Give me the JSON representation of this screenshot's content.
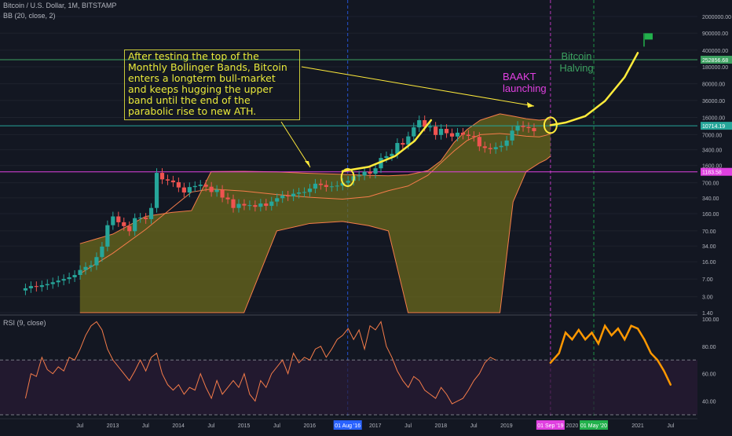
{
  "legend": {
    "symbol": "Bitcoin / U.S. Dollar, 1M, BITSTAMP",
    "bb": "BB (20, close, 2)",
    "rsi": "RSI (9, close)"
  },
  "annotations": {
    "main_text": "After testing the top of the Monthly Bollinger Bands, Bitcoin enters a longterm bull-market and keeps hugging the upper band until the end of the parabolic rise to new ATH.",
    "baakt": "BAAKT launching",
    "halving": "Bitcoin Halving"
  },
  "colors": {
    "background": "#131722",
    "candle_up": "#26a69a",
    "candle_down": "#ef5350",
    "band_fill": "#6b6a1c",
    "band_line": "#f57c4a",
    "highlight_yellow": "#ffeb3b",
    "baakt_color": "#e040e0",
    "halving_color": "#3ca060",
    "rsi_line": "#f57c4a",
    "rsi_projection": "#ff9800",
    "rsi_fill": "#2a1b35",
    "price_line": "#e040e0",
    "target_line": "#3ca060"
  },
  "chart_data": [
    {
      "type": "line",
      "title": "Bitcoin / U.S. Dollar, 1M, BITSTAMP",
      "scale": "log",
      "ylim": [
        1.4,
        3000000
      ],
      "yticks": [
        1.4,
        3.0,
        7.0,
        16.0,
        34.0,
        70.0,
        160.0,
        340.0,
        700.0,
        1600.0,
        3400.0,
        7000.0,
        16000.0,
        36000.0,
        80000.0,
        180000.0,
        400000.0,
        900000.0,
        2000000.0
      ],
      "ytick_labels": [
        "1.40",
        "3.00",
        "7.00",
        "16.00",
        "34.00",
        "70.00",
        "160.00",
        "340.00",
        "700.00",
        "1600.00",
        "3400.00",
        "7000.00",
        "16000.00",
        "36000.00",
        "80000.00",
        "180000.00",
        "400000.00",
        "900000.00",
        "2000000.00"
      ],
      "price_markers": [
        {
          "value": 10714.19,
          "label": "10714.19",
          "color": "#26a69a"
        },
        {
          "value": 1183.58,
          "label": "1183.58",
          "color": "#e040e0"
        },
        {
          "value": 252856.68,
          "label": "252856.68",
          "color": "#3ca060"
        }
      ],
      "x_ticks": [
        {
          "label": "Jul",
          "x": 2012.5
        },
        {
          "label": "2013",
          "x": 2013.0
        },
        {
          "label": "Jul",
          "x": 2013.5
        },
        {
          "label": "2014",
          "x": 2014.0
        },
        {
          "label": "Jul",
          "x": 2014.5
        },
        {
          "label": "2015",
          "x": 2015.0
        },
        {
          "label": "Jul",
          "x": 2015.5
        },
        {
          "label": "2016",
          "x": 2016.0
        },
        {
          "label": "2017",
          "x": 2017.0
        },
        {
          "label": "Jul",
          "x": 2017.5
        },
        {
          "label": "2018",
          "x": 2018.0
        },
        {
          "label": "Jul",
          "x": 2018.5
        },
        {
          "label": "2019",
          "x": 2019.0
        },
        {
          "label": "2020",
          "x": 2020.0
        },
        {
          "label": "2021",
          "x": 2021.0
        },
        {
          "label": "Jul",
          "x": 2021.5
        }
      ],
      "date_markers": [
        {
          "label": "01 Aug '16",
          "x": 2016.58,
          "color": "#2962ff"
        },
        {
          "label": "01 Sep '19",
          "x": 2019.67,
          "color": "#e040e0"
        },
        {
          "label": "01 May '20",
          "x": 2020.33,
          "color": "#22b14c"
        }
      ],
      "candles_x_start": 2011.67,
      "candles_x_step": 0.08333,
      "candles_close": [
        4.5,
        5,
        4.8,
        5.2,
        5.5,
        6,
        6.5,
        7,
        7.6,
        8.5,
        10.8,
        12.5,
        13.5,
        20,
        33,
        92,
        140,
        106,
        88,
        69,
        129,
        132,
        123,
        210,
        1125,
        825,
        780,
        720,
        560,
        440,
        570,
        600,
        640,
        580,
        450,
        500,
        345,
        318,
        210,
        255,
        236,
        240,
        222,
        260,
        232,
        285,
        335,
        380,
        365,
        415,
        440,
        450,
        530,
        670,
        630,
        575,
        590,
        610,
        700,
        770,
        960,
        990,
        1190,
        1080,
        1400,
        2300,
        2500,
        2800,
        4700,
        4340,
        6450,
        9950,
        14000,
        10200,
        10300,
        6900,
        9250,
        7500,
        6400,
        7700,
        7000,
        6600,
        6300,
        4000,
        3700,
        3500,
        3850,
        4100,
        5300,
        8500,
        10700,
        10100,
        9600,
        8300
      ],
      "bb_upper": [
        38,
        60,
        140,
        170,
        185,
        1200,
        1210,
        1180,
        1100,
        1050,
        1000,
        980,
        1020,
        1250,
        2000,
        4800,
        9000,
        14000,
        19000,
        17000,
        15000,
        14000,
        14500,
        14800
      ],
      "bb_middle": [
        9,
        24,
        75,
        210,
        450,
        520,
        470,
        400,
        350,
        320,
        360,
        480,
        600,
        1000,
        1800,
        3200,
        5300,
        7000,
        7400,
        7000,
        6500,
        6300,
        6800,
        7300
      ],
      "bb_lower": [
        1.4,
        1.4,
        1.4,
        1.4,
        1.4,
        1.4,
        1.4,
        70,
        100,
        110,
        90,
        70,
        1.4,
        1.4,
        1.4,
        1.4,
        1.4,
        1.4,
        1.4,
        280,
        1200,
        1800,
        2100,
        2500
      ],
      "bb_x": [
        2012.5,
        2013.0,
        2013.5,
        2013.9,
        2014.2,
        2014.5,
        2015.0,
        2015.5,
        2016.0,
        2016.5,
        2016.9,
        2017.2,
        2017.5,
        2017.8,
        2018.0,
        2018.2,
        2018.4,
        2018.6,
        2018.9,
        2019.1,
        2019.3,
        2019.5,
        2019.6,
        2019.67
      ],
      "projection": {
        "x": [
          2019.67,
          2019.9,
          2020.2,
          2020.5,
          2020.8,
          2021.0
        ],
        "y": [
          11000,
          12500,
          17000,
          35000,
          110000,
          350000
        ]
      }
    },
    {
      "type": "line",
      "title": "RSI (9, close)",
      "ylim": [
        30,
        100
      ],
      "yticks": [
        40.0,
        60.0,
        80.0,
        100.0
      ],
      "ytick_labels": [
        "40.00",
        "60.00",
        "80.00",
        "100.00"
      ],
      "bands": [
        70,
        30
      ],
      "x_start": 2011.67,
      "x_step": 0.08333,
      "values": [
        42,
        60,
        58,
        72,
        63,
        60,
        65,
        62,
        72,
        70,
        78,
        88,
        95,
        98,
        92,
        78,
        70,
        65,
        60,
        55,
        62,
        70,
        62,
        72,
        75,
        60,
        52,
        48,
        52,
        45,
        50,
        48,
        60,
        50,
        42,
        55,
        45,
        50,
        55,
        50,
        60,
        45,
        40,
        55,
        50,
        60,
        65,
        70,
        60,
        75,
        68,
        72,
        70,
        78,
        80,
        72,
        78,
        85,
        88,
        93,
        85,
        92,
        78,
        95,
        92,
        98,
        80,
        72,
        62,
        55,
        50,
        58,
        55,
        48,
        45,
        42,
        50,
        45,
        38,
        40,
        42,
        48,
        55,
        60,
        68,
        72,
        70
      ],
      "projection": {
        "x": [
          2019.67,
          2019.8,
          2019.9,
          2020.0,
          2020.1,
          2020.2,
          2020.3,
          2020.4,
          2020.5,
          2020.6,
          2020.7,
          2020.8,
          2020.9,
          2021.0,
          2021.1,
          2021.2,
          2021.3,
          2021.4,
          2021.5
        ],
        "y": [
          68,
          75,
          90,
          85,
          92,
          85,
          90,
          82,
          95,
          88,
          93,
          85,
          95,
          93,
          85,
          75,
          70,
          62,
          52
        ]
      }
    }
  ]
}
